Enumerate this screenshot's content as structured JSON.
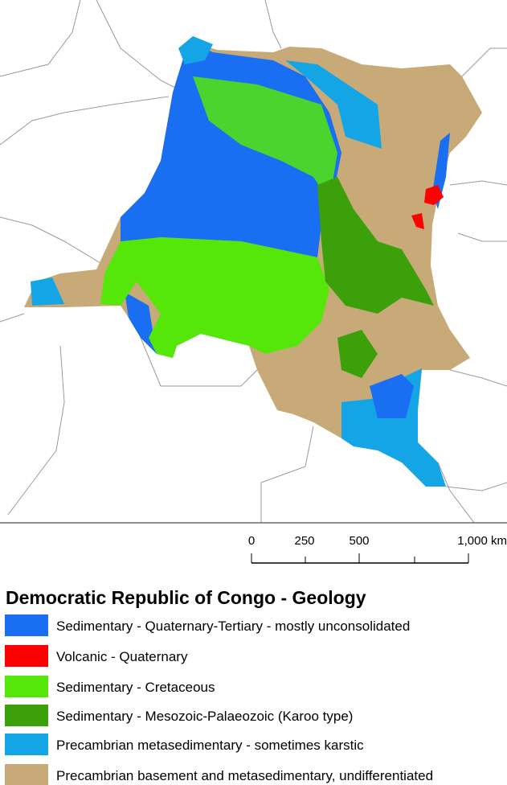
{
  "scale_bar": {
    "labels": [
      "0",
      "250",
      "500",
      "1,000 km"
    ]
  },
  "legend": {
    "title": "Democratic Republic of Congo - Geology",
    "items": [
      {
        "label": "Sedimentary - Quaternary-Tertiary - mostly unconsolidated",
        "color": "#1a6ef2"
      },
      {
        "label": "Volcanic - Quaternary",
        "color": "#ff0000"
      },
      {
        "label": "Sedimentary - Cretaceous",
        "color": "#55e60a"
      },
      {
        "label": "Sedimentary - Mesozoic-Palaeozoic (Karoo type)",
        "color": "#3ca00a"
      },
      {
        "label": "Precambrian metasedimentary - sometimes karstic",
        "color": "#14a5e6"
      },
      {
        "label": "Precambrian basement and metasedimentary, undifferentiated",
        "color": "#c8aa78"
      }
    ]
  }
}
